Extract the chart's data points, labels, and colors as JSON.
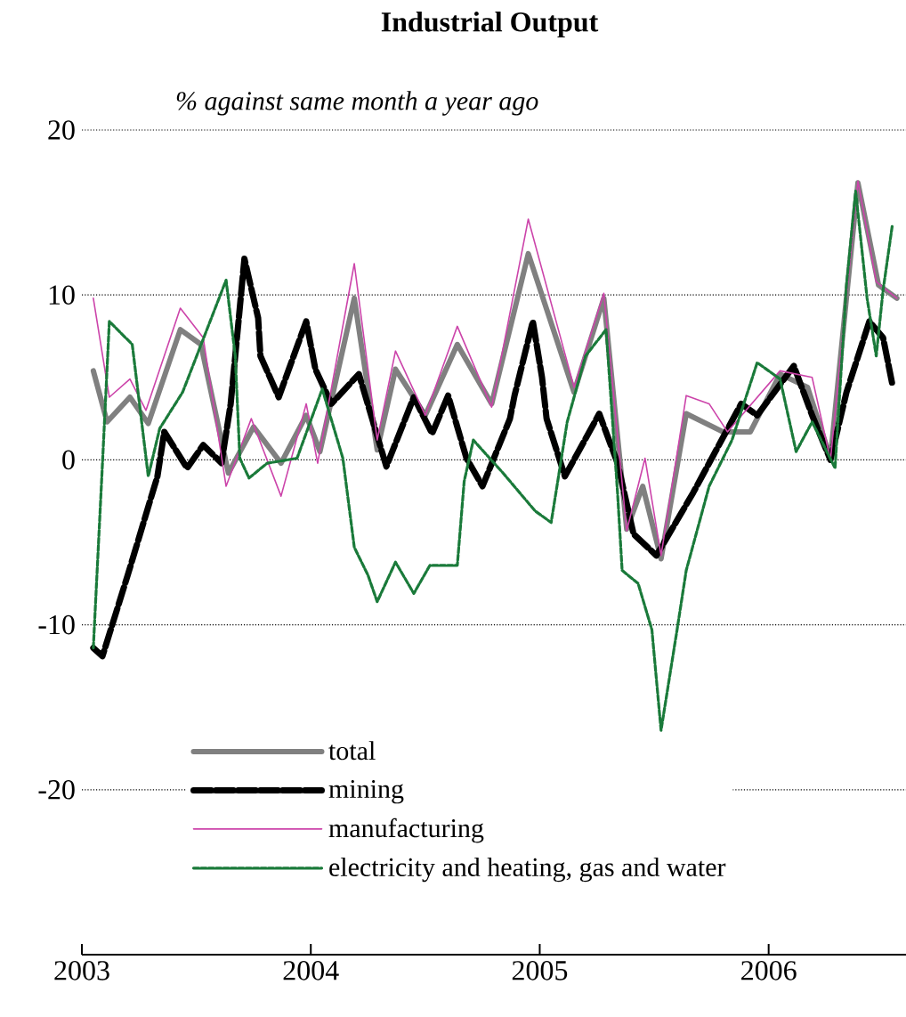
{
  "chart_data": {
    "type": "line",
    "title": "Industrial Output",
    "subtitle": "% against same month a year ago",
    "xlim": [
      2003,
      2006.6
    ],
    "xticks": [
      2003,
      2004,
      2005,
      2006
    ],
    "ylim": [
      -30,
      20
    ],
    "yticks": [
      -20,
      -10,
      0,
      10,
      20
    ],
    "grid": "y",
    "legend": "bottom left",
    "series": [
      {
        "name": "total",
        "color": "#808080",
        "line_style": "solid",
        "x": [
          2003.05,
          2003.11,
          2003.21,
          2003.29,
          2003.43,
          2003.52,
          2003.64,
          2003.75,
          2003.87,
          2003.98,
          2004.04,
          2004.19,
          2004.29,
          2004.37,
          2004.5,
          2004.64,
          2004.79,
          2004.95,
          2005.15,
          2005.28,
          2005.38,
          2005.45,
          2005.53,
          2005.64,
          2005.8,
          2005.92,
          2006.05,
          2006.17,
          2006.27,
          2006.39,
          2006.48,
          2006.56
        ],
        "values": [
          5.4,
          2.3,
          3.8,
          2.2,
          7.9,
          7.0,
          -0.8,
          2.0,
          -0.2,
          2.7,
          0.5,
          9.8,
          0.6,
          5.5,
          2.7,
          7.0,
          3.4,
          12.5,
          4.1,
          9.8,
          -4.2,
          -1.6,
          -6.0,
          2.8,
          1.7,
          1.7,
          5.2,
          4.4,
          0.1,
          16.8,
          10.6,
          9.8
        ]
      },
      {
        "name": "mining",
        "color": "#000000",
        "line_style": "dashed",
        "x": [
          2003.05,
          2003.09,
          2003.2,
          2003.33,
          2003.36,
          2003.46,
          2003.53,
          2003.61,
          2003.65,
          2003.67,
          2003.71,
          2003.77,
          2003.78,
          2003.86,
          2003.98,
          2004.02,
          2004.09,
          2004.21,
          2004.33,
          2004.45,
          2004.53,
          2004.6,
          2004.68,
          2004.75,
          2004.87,
          2004.89,
          2004.97,
          2005.01,
          2005.03,
          2005.11,
          2005.26,
          2005.34,
          2005.41,
          2005.51,
          2005.67,
          2005.88,
          2005.95,
          2006.11,
          2006.19,
          2006.27,
          2006.34,
          2006.44,
          2006.5,
          2006.54
        ],
        "values": [
          -11.4,
          -11.9,
          -7.0,
          -1.0,
          1.7,
          -0.5,
          0.9,
          -0.2,
          3.4,
          6.3,
          12.2,
          8.6,
          6.3,
          3.8,
          8.4,
          5.5,
          3.4,
          5.2,
          -0.4,
          3.8,
          1.6,
          3.9,
          0.1,
          -1.6,
          2.5,
          3.9,
          8.4,
          5.0,
          2.5,
          -1.0,
          2.8,
          -0.2,
          -4.5,
          -5.8,
          -2.0,
          3.4,
          2.7,
          5.7,
          2.7,
          0.0,
          4.1,
          8.4,
          7.4,
          4.6
        ]
      },
      {
        "name": "manufacturing",
        "color": "#cc44aa",
        "line_style": "solid",
        "x": [
          2003.05,
          2003.12,
          2003.21,
          2003.28,
          2003.43,
          2003.53,
          2003.63,
          2003.74,
          2003.87,
          2003.98,
          2004.03,
          2004.19,
          2004.29,
          2004.37,
          2004.5,
          2004.64,
          2004.79,
          2004.95,
          2005.15,
          2005.28,
          2005.38,
          2005.46,
          2005.53,
          2005.64,
          2005.74,
          2005.82,
          2006.05,
          2006.19,
          2006.27,
          2006.39,
          2006.47,
          2006.56
        ],
        "values": [
          9.8,
          3.8,
          4.9,
          3.0,
          9.2,
          7.4,
          -1.6,
          2.5,
          -2.2,
          3.4,
          -0.2,
          11.9,
          1.2,
          6.6,
          2.7,
          8.1,
          3.2,
          14.6,
          4.4,
          10.1,
          -4.3,
          0.1,
          -5.8,
          3.9,
          3.4,
          1.7,
          5.4,
          5.0,
          0.0,
          16.9,
          10.8,
          9.8
        ]
      },
      {
        "name": "electricity and heating, gas and water",
        "color": "#1a7a3a",
        "line_style": "dotted",
        "x": [
          2003.05,
          2003.09,
          2003.12,
          2003.22,
          2003.29,
          2003.34,
          2003.44,
          2003.63,
          2003.67,
          2003.69,
          2003.73,
          2003.81,
          2003.94,
          2004.05,
          2004.14,
          2004.19,
          2004.25,
          2004.29,
          2004.37,
          2004.45,
          2004.52,
          2004.64,
          2004.67,
          2004.71,
          2004.84,
          2004.98,
          2005.05,
          2005.12,
          2005.2,
          2005.29,
          2005.34,
          2005.36,
          2005.43,
          2005.49,
          2005.53,
          2005.6,
          2005.64,
          2005.74,
          2005.84,
          2005.95,
          2006.05,
          2006.12,
          2006.19,
          2006.29,
          2006.34,
          2006.38,
          2006.43,
          2006.47,
          2006.5,
          2006.54
        ],
        "values": [
          -11.4,
          -0.2,
          8.4,
          7.0,
          -1.0,
          1.9,
          4.1,
          10.9,
          6.3,
          0.1,
          -1.1,
          -0.2,
          0.1,
          4.3,
          0.1,
          -5.3,
          -7.0,
          -8.6,
          -6.2,
          -8.1,
          -6.4,
          -6.4,
          -1.3,
          1.2,
          -0.8,
          -3.1,
          -3.8,
          2.3,
          6.3,
          7.9,
          -2.0,
          -6.7,
          -7.5,
          -10.3,
          -16.4,
          -10.3,
          -6.7,
          -1.6,
          1.2,
          5.9,
          4.9,
          0.5,
          2.3,
          -0.5,
          10.6,
          16.3,
          9.8,
          6.3,
          10.3,
          14.2
        ]
      }
    ]
  }
}
